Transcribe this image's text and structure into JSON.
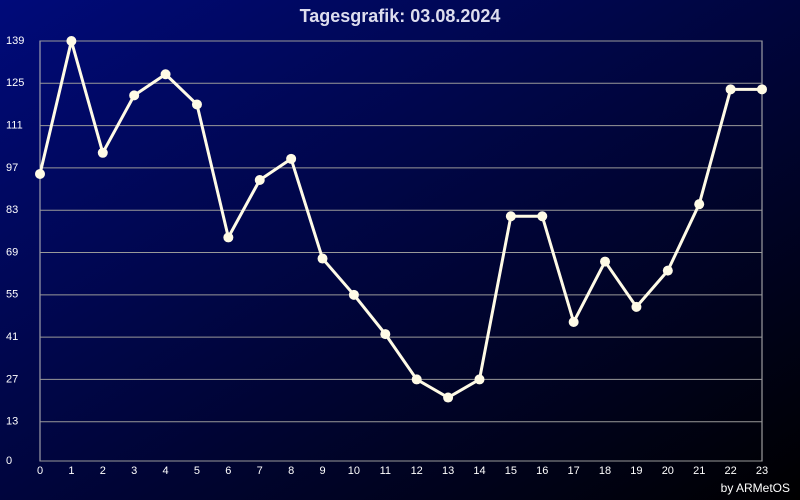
{
  "chart_data": {
    "type": "line",
    "title": "Tagesgrafik: 03.08.2024",
    "footer": "by ARMetOS",
    "x": [
      0,
      1,
      2,
      3,
      4,
      5,
      6,
      7,
      8,
      9,
      10,
      11,
      12,
      13,
      14,
      15,
      16,
      17,
      18,
      19,
      20,
      21,
      22,
      23
    ],
    "series": [
      {
        "color": "#fffbe6",
        "values": [
          95,
          139,
          102,
          121,
          128,
          118,
          74,
          93,
          100,
          67,
          55,
          42,
          27,
          21,
          27,
          81,
          81,
          46,
          66,
          51,
          63,
          85,
          123,
          123
        ]
      }
    ],
    "xlim": [
      0,
      23
    ],
    "xticks": [
      0,
      1,
      2,
      3,
      4,
      5,
      6,
      7,
      8,
      9,
      10,
      11,
      12,
      13,
      14,
      15,
      16,
      17,
      18,
      19,
      20,
      21,
      22,
      23
    ],
    "ylim": [
      0,
      139
    ],
    "yticks": [
      0,
      13,
      27,
      41,
      55,
      69,
      83,
      97,
      111,
      125,
      139
    ],
    "grid": true
  }
}
